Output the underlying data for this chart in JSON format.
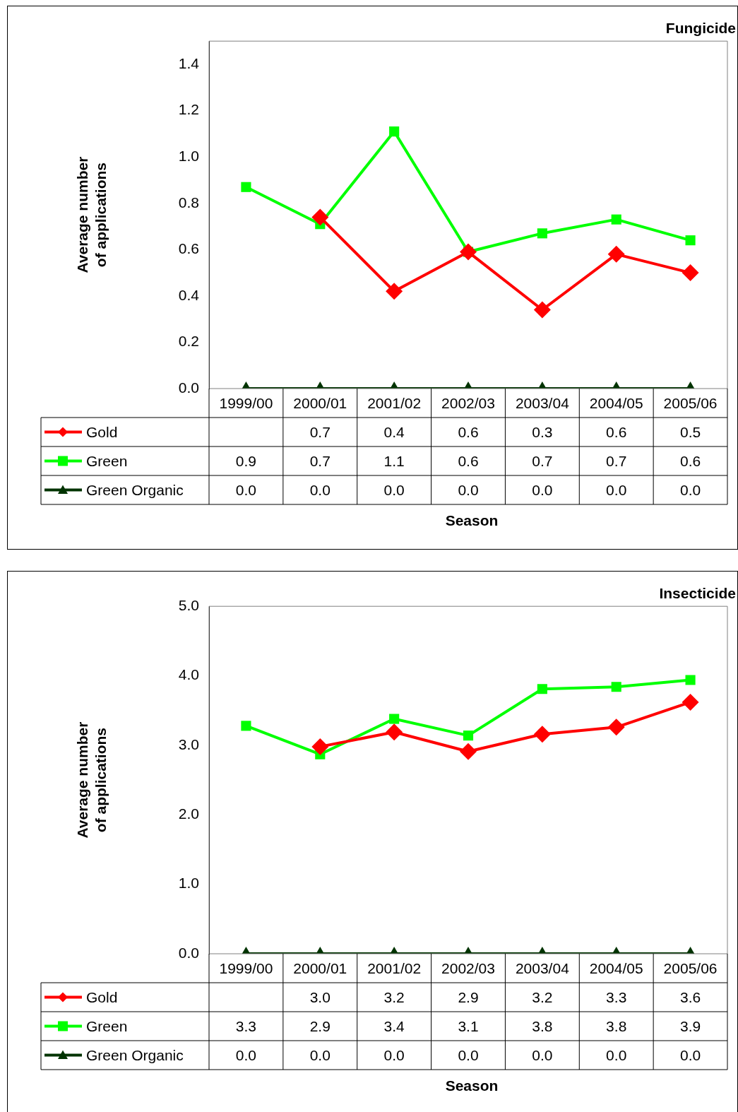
{
  "chart_data": [
    {
      "type": "line",
      "title": "Fungicide",
      "xlabel": "Season",
      "ylabel": "Average number of applications",
      "categories": [
        "1999/00",
        "2000/01",
        "2001/02",
        "2002/03",
        "2003/04",
        "2004/05",
        "2005/06"
      ],
      "ylim": [
        0,
        1.5
      ],
      "yticks": [
        {
          "value": 0,
          "label": "0.0"
        },
        {
          "value": 0.2,
          "label": "0.2"
        },
        {
          "value": 0.4,
          "label": "0.4"
        },
        {
          "value": 0.6,
          "label": "0.6"
        },
        {
          "value": 0.8,
          "label": "0.8"
        },
        {
          "value": 1,
          "label": "1.0"
        },
        {
          "value": 1.2,
          "label": "1.2"
        },
        {
          "value": 1.4,
          "label": "1.4"
        }
      ],
      "grid": false,
      "legend": "bottom left",
      "series": [
        {
          "name": "Gold",
          "color": "#ff0000",
          "marker": "diamond",
          "values": [
            null,
            0.74,
            0.42,
            0.59,
            0.34,
            0.58,
            0.5
          ],
          "value_labels": [
            null,
            "0.7",
            "0.4",
            "0.6",
            "0.3",
            "0.6",
            "0.5"
          ]
        },
        {
          "name": "Green",
          "color": "#00ff00",
          "marker": "square",
          "values": [
            0.87,
            0.71,
            1.11,
            0.59,
            0.67,
            0.73,
            0.64
          ],
          "value_labels": [
            "0.9",
            "0.7",
            "1.1",
            "0.6",
            "0.7",
            "0.7",
            "0.6"
          ]
        },
        {
          "name": "Green Organic",
          "color": "#003300",
          "marker": "triangle",
          "values": [
            0,
            0,
            0,
            0,
            0,
            0,
            0
          ],
          "value_labels": [
            "0.0",
            "0.0",
            "0.0",
            "0.0",
            "0.0",
            "0.0",
            "0.0"
          ]
        }
      ]
    },
    {
      "type": "line",
      "title": "Insecticide",
      "xlabel": "Season",
      "ylabel": "Average number of applications",
      "categories": [
        "1999/00",
        "2000/01",
        "2001/02",
        "2002/03",
        "2003/04",
        "2004/05",
        "2005/06"
      ],
      "ylim": [
        0,
        5
      ],
      "yticks": [
        {
          "value": 0,
          "label": "0.0"
        },
        {
          "value": 1,
          "label": "1.0"
        },
        {
          "value": 2,
          "label": "2.0"
        },
        {
          "value": 3,
          "label": "3.0"
        },
        {
          "value": 4,
          "label": "4.0"
        },
        {
          "value": 5,
          "label": "5.0"
        }
      ],
      "grid": false,
      "legend": "bottom left",
      "series": [
        {
          "name": "Gold",
          "color": "#ff0000",
          "marker": "diamond",
          "values": [
            null,
            2.98,
            3.19,
            2.91,
            3.16,
            3.26,
            3.62
          ],
          "value_labels": [
            null,
            "3.0",
            "3.2",
            "2.9",
            "3.2",
            "3.3",
            "3.6"
          ]
        },
        {
          "name": "Green",
          "color": "#00ff00",
          "marker": "square",
          "values": [
            3.28,
            2.87,
            3.38,
            3.14,
            3.81,
            3.84,
            3.94
          ],
          "value_labels": [
            "3.3",
            "2.9",
            "3.4",
            "3.1",
            "3.8",
            "3.8",
            "3.9"
          ]
        },
        {
          "name": "Green Organic",
          "color": "#003300",
          "marker": "triangle",
          "values": [
            0,
            0,
            0,
            0,
            0,
            0,
            0
          ],
          "value_labels": [
            "0.0",
            "0.0",
            "0.0",
            "0.0",
            "0.0",
            "0.0",
            "0.0"
          ]
        }
      ]
    }
  ]
}
